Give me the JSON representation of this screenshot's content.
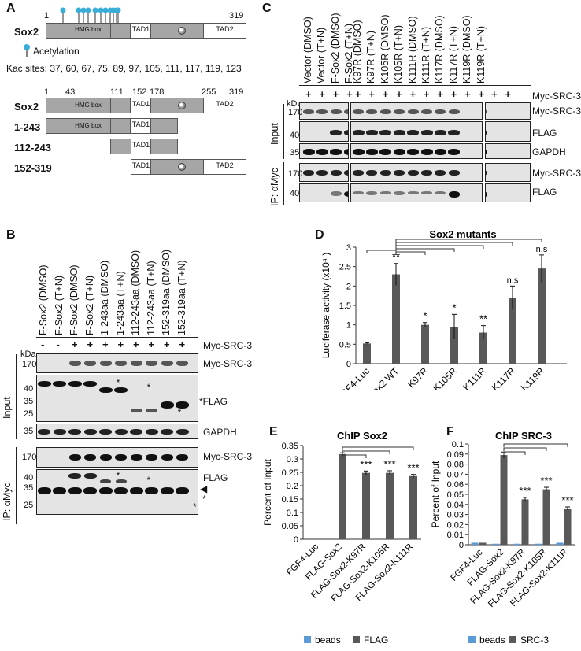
{
  "panelA": {
    "letter": "A",
    "sox2": "Sox2",
    "hmg": "HMG box",
    "tad1": "TAD1",
    "tad2": "TAD2",
    "pos_start": "1",
    "pos_end": "319",
    "acetylation": "Acetylation",
    "kac_sites": "Kac sites: 37, 60, 67, 75, 89, 97, 105, 111, 117, 119, 123",
    "map_positions": [
      "1",
      "43",
      "111",
      "152",
      "178",
      "255",
      "319"
    ],
    "constructs": [
      "1-243",
      "112-243",
      "152-319"
    ]
  },
  "panelB": {
    "letter": "B",
    "lanes": [
      "F-Sox2 (DMSO)",
      "F-Sox2 (T+N)",
      "F-Sox2 (DMSO)",
      "F-Sox2 (T+N)",
      "1-243aa (DMSO)",
      "1-243aa (T+N)",
      "112-243aa (DMSO)",
      "112-243aa (T+N)",
      "152-319aa (DMSO)",
      "152-319aa (T+N)"
    ],
    "myc_row": [
      "-",
      "-",
      "+",
      "+",
      "+",
      "+",
      "+",
      "+",
      "+",
      "+"
    ],
    "myc_label": "Myc-SRC-3",
    "kda": "kDa",
    "input": "Input",
    "ip": "IP: αMyc",
    "blots": [
      "Myc-SRC-3",
      "FLAG",
      "GAPDH",
      "Myc-SRC-3",
      "FLAG"
    ],
    "flag_input_label": "*FLAG",
    "mw": [
      "170",
      "40",
      "35",
      "25",
      "35",
      "170",
      "40",
      "35",
      "25"
    ],
    "star": "*",
    "arrow": "◀"
  },
  "panelC": {
    "letter": "C",
    "lanes": [
      "Vector (DMSO)",
      "Vector (T+N)",
      "F-Sox2 (DMSO)",
      "F-Sox2 (T+N)",
      "K97R (DMSO)",
      "K97R (T+N)",
      "K105R (DMSO)",
      "K105R (T+N)",
      "K111R (DMSO)",
      "K111R (T+N)",
      "K117R (DMSO)",
      "K117R (T+N)",
      "K119R (DMSO)",
      "K119R (T+N)"
    ],
    "plus": "+",
    "myc_label": "Myc-SRC-3",
    "kda": "kDa",
    "input": "Input",
    "ip": "IP: αMyc",
    "blots": [
      "Myc-SRC-3",
      "FLAG",
      "GAPDH",
      "Myc-SRC-3",
      "FLAG"
    ],
    "mw": [
      "170",
      "40",
      "35",
      "170",
      "40"
    ]
  },
  "panelD": {
    "letter": "D",
    "bracket_title": "Sox2 mutants",
    "chart_data": {
      "type": "bar",
      "categories": [
        "FGF4-Luc",
        "Sox2 WT",
        "K97R",
        "K105R",
        "K111R",
        "K117R",
        "K119R"
      ],
      "values": [
        0.52,
        2.3,
        1.0,
        0.95,
        0.8,
        1.7,
        2.45
      ],
      "errors": [
        0.02,
        0.28,
        0.06,
        0.32,
        0.18,
        0.3,
        0.35
      ],
      "significance": [
        "",
        "**",
        "*",
        "*",
        "**",
        "n.s",
        "n.s"
      ],
      "ylabel": "Luciferase activity (x10⁴ )",
      "ylim": [
        0,
        3
      ],
      "yticks": [
        "0",
        "0.5",
        "1",
        "1.5",
        "2",
        "2.5",
        "3"
      ],
      "color": "#595959"
    }
  },
  "panelE": {
    "letter": "E",
    "chart_data": {
      "type": "bar",
      "title": "ChIP Sox2",
      "categories": [
        "FGF4-Luc",
        "FLAG-Sox2",
        "FLAG-Sox2-K97R",
        "FLAG-Sox2-K105R",
        "FLAG-Sox2-K111R"
      ],
      "series": [
        {
          "name": "beads",
          "values": [
            0.0,
            0.0,
            0.0,
            0.0,
            0.0
          ],
          "color": "#5b9bd5"
        },
        {
          "name": "FLAG",
          "values": [
            0.0,
            0.318,
            0.248,
            0.248,
            0.236
          ],
          "errors": [
            0,
            0.005,
            0.007,
            0.008,
            0.006
          ],
          "color": "#595959"
        }
      ],
      "significance": [
        "",
        "",
        "***",
        "***",
        "***"
      ],
      "ylabel": "Percent of Input",
      "ylim": [
        0,
        0.35
      ],
      "yticks": [
        "0",
        "0.05",
        "0.1",
        "0.15",
        "0.2",
        "0.25",
        "0.3",
        "0.35"
      ]
    }
  },
  "panelF": {
    "letter": "F",
    "chart_data": {
      "type": "bar",
      "title": "ChIP SRC-3",
      "categories": [
        "FGF4-Luc",
        "FLAG-Sox2",
        "FLAG-Sox2-K97R",
        "FLAG-Sox2-K105R",
        "FLAG-Sox2-K111R"
      ],
      "series": [
        {
          "name": "beads",
          "values": [
            0.002,
            0.001,
            0.001,
            0.001,
            0.002
          ],
          "color": "#5b9bd5"
        },
        {
          "name": "SRC-3",
          "values": [
            0.002,
            0.089,
            0.045,
            0.055,
            0.036
          ],
          "errors": [
            0,
            0.003,
            0.002,
            0.002,
            0.0015
          ],
          "color": "#595959"
        }
      ],
      "significance": [
        "",
        "",
        "***",
        "***",
        "***"
      ],
      "ylabel": "Percent of Input",
      "ylim": [
        0,
        0.1
      ],
      "yticks": [
        "0",
        "0.01",
        "0.02",
        "0.03",
        "0.04",
        "0.05",
        "0.06",
        "0.07",
        "0.08",
        "0.09",
        "0.1"
      ]
    }
  }
}
